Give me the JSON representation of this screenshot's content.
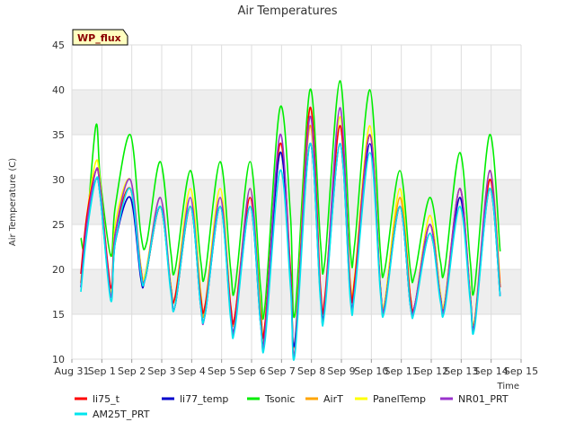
{
  "chart_data": {
    "type": "line",
    "title": "Air Temperatures",
    "xlabel": "Time",
    "ylabel": "Air Temperature (C)",
    "badge": "WP_flux",
    "ylim": [
      10,
      45
    ],
    "yticks": [
      10,
      15,
      20,
      25,
      30,
      35,
      40,
      45
    ],
    "xticks": [
      "Aug 31",
      "Sep 1",
      "Sep 2",
      "Sep 3",
      "Sep 4",
      "Sep 5",
      "Sep 6",
      "Sep 7",
      "Sep 8",
      "Sep 9",
      "Sep 10",
      "Sep 11",
      "Sep 12",
      "Sep 13",
      "Sep 14",
      "Sep 15"
    ],
    "xlim_days": [
      0,
      15
    ],
    "grid": "horizontal bands",
    "legend": "bottom",
    "x_unit": "days after Aug 31",
    "series": [
      {
        "name": "li75_t",
        "color": "#ff0000",
        "x": [
          0.3,
          0.5,
          0.8,
          0.95,
          1.3,
          1.45,
          1.95,
          2.3,
          2.45,
          2.95,
          3.3,
          3.45,
          3.95,
          4.3,
          4.45,
          4.95,
          5.3,
          5.45,
          5.95,
          6.3,
          6.45,
          6.95,
          7.3,
          7.45,
          7.95,
          8.3,
          8.45,
          8.95,
          9.3,
          9.45,
          9.95,
          10.3,
          10.45,
          10.95,
          11.3,
          11.45,
          11.95,
          12.3,
          12.45,
          12.95,
          13.3,
          13.45,
          13.95,
          14.3
        ],
        "y": [
          19.5,
          26,
          31,
          29,
          18,
          24,
          29,
          20,
          19,
          27,
          18,
          17,
          27,
          17,
          16,
          27,
          16,
          15,
          28,
          15,
          14,
          34,
          20,
          11,
          38,
          18,
          17,
          36,
          18,
          19,
          35,
          18,
          16,
          27,
          17,
          16,
          25,
          17,
          16,
          29,
          17,
          14,
          30,
          18
        ]
      },
      {
        "name": "li77_temp",
        "color": "#0000cc",
        "x": [
          0.3,
          0.5,
          0.8,
          0.95,
          1.3,
          1.45,
          1.95,
          2.3,
          2.45,
          2.95,
          3.3,
          3.45,
          3.95,
          4.3,
          4.45,
          4.95,
          5.3,
          5.45,
          5.95,
          6.3,
          6.45,
          6.95,
          7.3,
          7.45,
          7.95,
          8.3,
          8.45,
          8.95,
          9.3,
          9.45,
          9.95,
          10.3,
          10.45,
          10.95,
          11.3,
          11.45,
          11.95,
          12.3,
          12.45,
          12.95,
          13.3,
          13.45,
          13.95,
          14.3
        ],
        "y": [
          18,
          25,
          30,
          28,
          17,
          23,
          28,
          19,
          19,
          27,
          18,
          16,
          27,
          16,
          15,
          27,
          15,
          14,
          27,
          14,
          13,
          33,
          19,
          12,
          34,
          17,
          16,
          34,
          17,
          18,
          34,
          18,
          16,
          27,
          16,
          16,
          24,
          17,
          16,
          28,
          17,
          14,
          29,
          17
        ]
      },
      {
        "name": "Tsonic",
        "color": "#00ee00",
        "x": [
          0.3,
          0.45,
          0.8,
          0.95,
          1.3,
          1.45,
          1.95,
          2.3,
          2.5,
          2.95,
          3.3,
          3.45,
          3.95,
          4.3,
          4.45,
          4.95,
          5.3,
          5.45,
          5.95,
          6.3,
          6.45,
          6.95,
          7.3,
          7.45,
          7.95,
          8.3,
          8.45,
          8.95,
          9.3,
          9.45,
          9.95,
          10.3,
          10.45,
          10.95,
          11.3,
          11.45,
          11.95,
          12.3,
          12.45,
          12.95,
          13.3,
          13.45,
          13.95,
          14.3
        ],
        "y": [
          23.5,
          23,
          36,
          30,
          21.5,
          27,
          35,
          24,
          23,
          32,
          22,
          20,
          31,
          21,
          19.5,
          32,
          20,
          18,
          32,
          18,
          16,
          38,
          26,
          15,
          40,
          23,
          21,
          41,
          22,
          23,
          40,
          22,
          20,
          31,
          20,
          19.5,
          28,
          21,
          20,
          33,
          21,
          18,
          35,
          22
        ]
      },
      {
        "name": "AirT",
        "color": "#ffa500",
        "x": [
          0.3,
          0.5,
          0.8,
          0.95,
          1.3,
          1.45,
          1.95,
          2.3,
          2.45,
          2.95,
          3.3,
          3.45,
          3.95,
          4.3,
          4.45,
          4.95,
          5.3,
          5.45,
          5.95,
          6.3,
          6.45,
          6.95,
          7.3,
          7.45,
          7.95,
          8.3,
          8.45,
          8.95,
          9.3,
          9.45,
          9.95,
          10.3,
          10.45,
          10.95,
          11.3,
          11.45,
          11.95,
          12.3,
          12.45,
          12.95,
          13.3,
          13.45,
          13.95,
          14.3
        ],
        "y": [
          18.5,
          25,
          31,
          29,
          17,
          24,
          29,
          20,
          19,
          27,
          18,
          16,
          27,
          17,
          15.5,
          28,
          15.5,
          15,
          28,
          15,
          13,
          33,
          19,
          12,
          36,
          17,
          16,
          36,
          18,
          19,
          35,
          18,
          16,
          28,
          17,
          16,
          25,
          17,
          16,
          28,
          17,
          14,
          30,
          18
        ]
      },
      {
        "name": "PanelTemp",
        "color": "#ffff00",
        "x": [
          0.3,
          0.5,
          0.8,
          0.95,
          1.3,
          1.45,
          1.95,
          2.3,
          2.45,
          2.95,
          3.3,
          3.45,
          3.95,
          4.3,
          4.45,
          4.95,
          5.3,
          5.45,
          5.95,
          6.3,
          6.45,
          6.95,
          7.3,
          7.45,
          7.95,
          8.3,
          8.45,
          8.95,
          9.3,
          9.45,
          9.95,
          10.3,
          10.45,
          10.95,
          11.3,
          11.45,
          11.95,
          12.3,
          12.45,
          12.95,
          13.3,
          13.45,
          13.95,
          14.3
        ],
        "y": [
          18.5,
          26,
          32,
          29.5,
          17.5,
          25,
          30,
          20.5,
          19.5,
          28,
          18.5,
          17,
          29,
          17.5,
          16,
          29,
          16,
          15,
          29,
          15.5,
          14,
          34,
          20,
          12,
          38,
          18,
          17,
          37,
          18.5,
          19.5,
          36,
          18.5,
          16.5,
          29,
          17,
          16,
          26,
          17.5,
          16.5,
          29,
          17.5,
          14.5,
          31,
          18.5
        ]
      },
      {
        "name": "NR01_PRT",
        "color": "#9932cc",
        "x": [
          0.3,
          0.5,
          0.8,
          0.95,
          1.3,
          1.45,
          1.95,
          2.3,
          2.45,
          2.95,
          3.3,
          3.45,
          3.95,
          4.3,
          4.45,
          4.95,
          5.3,
          5.45,
          5.95,
          6.3,
          6.45,
          6.95,
          7.3,
          7.45,
          7.95,
          8.3,
          8.45,
          8.95,
          9.3,
          9.45,
          9.95,
          10.3,
          10.45,
          10.95,
          11.3,
          11.45,
          11.95,
          12.3,
          12.45,
          12.95,
          13.3,
          13.45,
          13.95,
          14.3
        ],
        "y": [
          18,
          25,
          31,
          29,
          17,
          24,
          30,
          20,
          19,
          28,
          18,
          16,
          28,
          16,
          15,
          28,
          15,
          14,
          29,
          14,
          13,
          35,
          19,
          11,
          37,
          17,
          16,
          38,
          17,
          18,
          35,
          18,
          16,
          27,
          16,
          16,
          25,
          17,
          16,
          29,
          17,
          14,
          31,
          17
        ]
      },
      {
        "name": "AM25T_PRT",
        "color": "#00e5ee",
        "x": [
          0.3,
          0.5,
          0.8,
          0.95,
          1.3,
          1.45,
          1.95,
          2.3,
          2.45,
          2.95,
          3.3,
          3.45,
          3.95,
          4.3,
          4.45,
          4.95,
          5.3,
          5.45,
          5.95,
          6.3,
          6.45,
          6.95,
          7.3,
          7.45,
          7.95,
          8.3,
          8.45,
          8.95,
          9.3,
          9.45,
          9.95,
          10.3,
          10.45,
          10.95,
          11.3,
          11.45,
          11.95,
          12.3,
          12.45,
          12.95,
          13.3,
          13.45,
          13.95,
          14.3
        ],
        "y": [
          17.5,
          24,
          30,
          28,
          16.5,
          23,
          29,
          19.5,
          19,
          27,
          17.5,
          16,
          27,
          16,
          15,
          27,
          14.5,
          13.5,
          27,
          14,
          12,
          31,
          18,
          10.5,
          34,
          16.5,
          15.5,
          34,
          16.5,
          17.5,
          33,
          17.5,
          15.5,
          27,
          16,
          15.5,
          24,
          16.5,
          15.5,
          27,
          16.5,
          13.5,
          29,
          17
        ]
      }
    ]
  }
}
